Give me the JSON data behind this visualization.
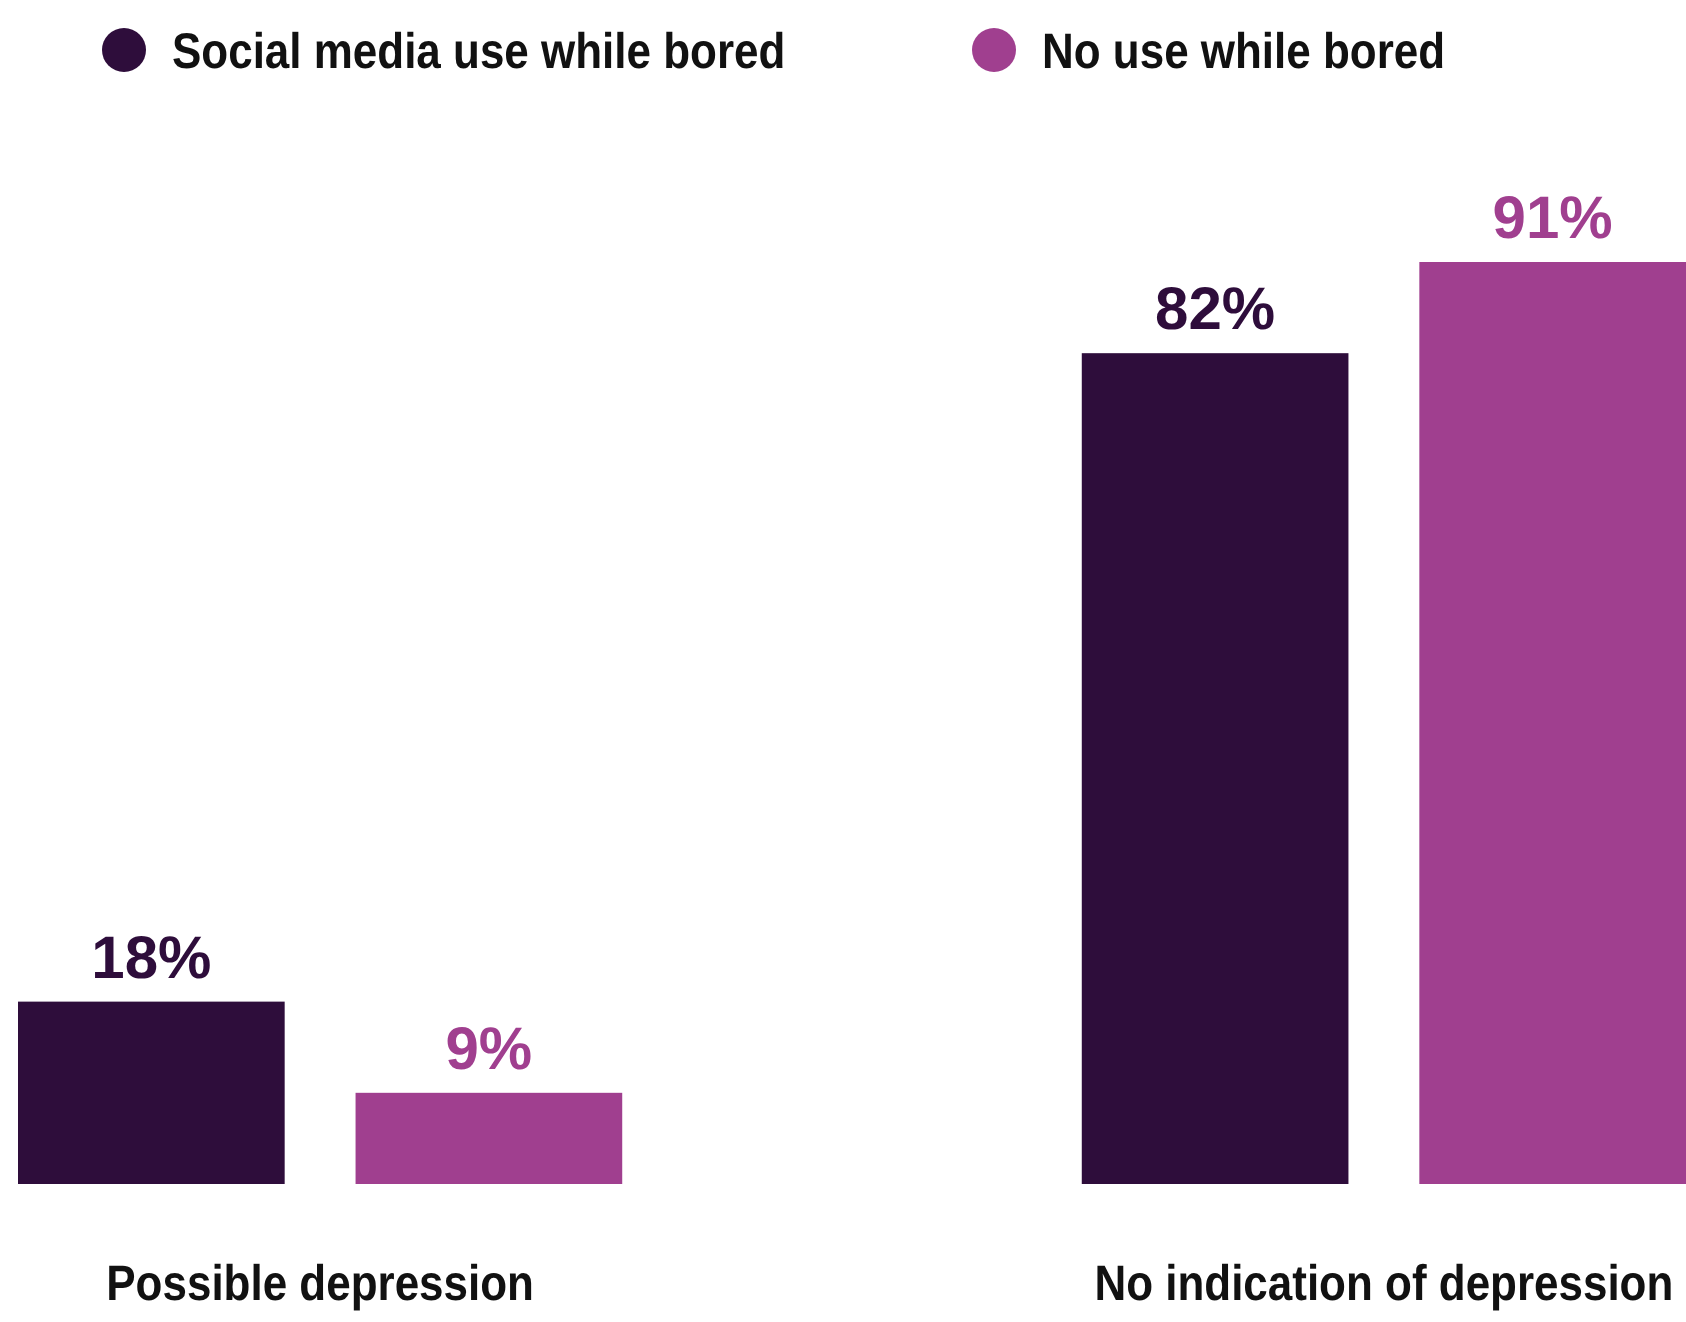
{
  "chart_data": {
    "type": "bar",
    "categories": [
      "Possible depression",
      "No indication of depression"
    ],
    "series": [
      {
        "name": "Social media use while bored",
        "color": "#2e0d3b",
        "values": [
          18,
          82
        ],
        "value_labels": [
          "18%",
          "82%"
        ]
      },
      {
        "name": "No use while bored",
        "color": "#a03f8f",
        "values": [
          9,
          91
        ],
        "value_labels": [
          "9%",
          "91%"
        ]
      }
    ],
    "legend": "top"
  }
}
